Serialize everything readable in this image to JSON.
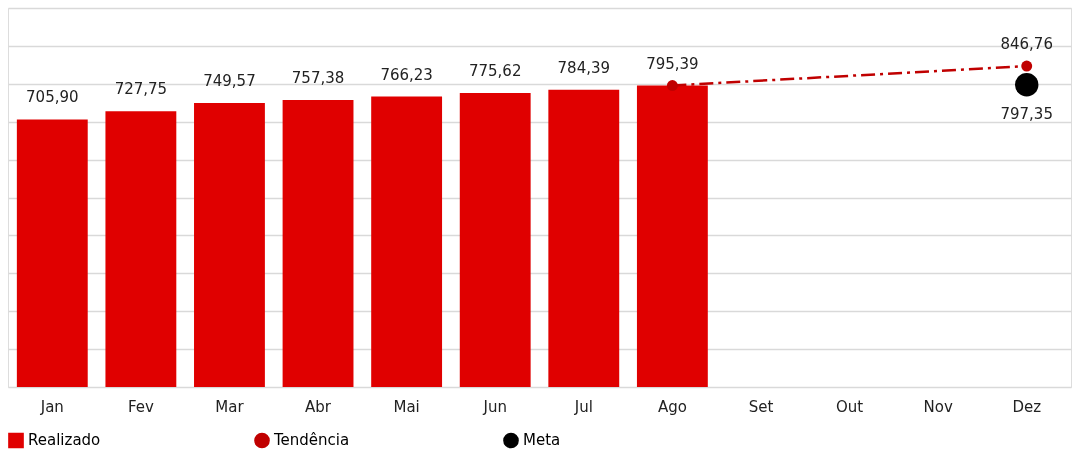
{
  "chart_data": {
    "type": "bar",
    "categories": [
      "Jan",
      "Fev",
      "Mar",
      "Abr",
      "Mai",
      "Jun",
      "Jul",
      "Ago",
      "Set",
      "Out",
      "Nov",
      "Dez"
    ],
    "series": [
      {
        "name": "Realizado",
        "color": "#e00000",
        "values": [
          705.9,
          727.75,
          749.57,
          757.38,
          766.23,
          775.62,
          784.39,
          795.39,
          null,
          null,
          null,
          null
        ],
        "value_labels": [
          "705,90",
          "727,75",
          "749,57",
          "757,38",
          "766,23",
          "775,62",
          "784,39",
          "795,39",
          null,
          null,
          null,
          null
        ]
      },
      {
        "name": "Tendência",
        "type": "line",
        "color": "#c00000",
        "x": [
          "Ago",
          "Dez"
        ],
        "values": [
          795.39,
          846.76
        ],
        "value_labels": [
          null,
          "846,76"
        ],
        "marker": "circle",
        "line_style": "dashed"
      },
      {
        "name": "Meta",
        "type": "scatter",
        "color": "#000000",
        "x": [
          "Dez"
        ],
        "values": [
          797.35
        ],
        "value_labels": [
          "797,35"
        ],
        "marker": "circle"
      }
    ],
    "ylim": [
      0,
      1000
    ],
    "tick_labels": "x",
    "grid": "y",
    "legend": "bottom"
  }
}
